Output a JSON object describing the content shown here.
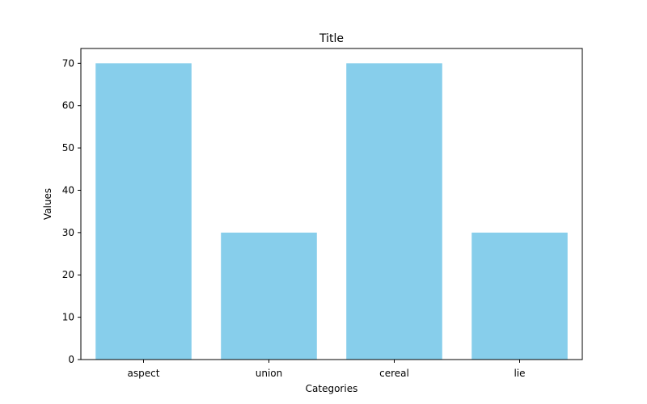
{
  "chart_data": {
    "type": "bar",
    "title": "Title",
    "xlabel": "Categories",
    "ylabel": "Values",
    "categories": [
      "aspect",
      "union",
      "cereal",
      "lie"
    ],
    "values": [
      70,
      30,
      70,
      30
    ],
    "ylim": [
      0,
      73.5
    ],
    "yticks": [
      0,
      10,
      20,
      30,
      40,
      50,
      60,
      70
    ],
    "grid": false,
    "legend": "none",
    "colors": {
      "bar": "#87ceeb",
      "axis": "#000000",
      "background": "#ffffff"
    }
  }
}
